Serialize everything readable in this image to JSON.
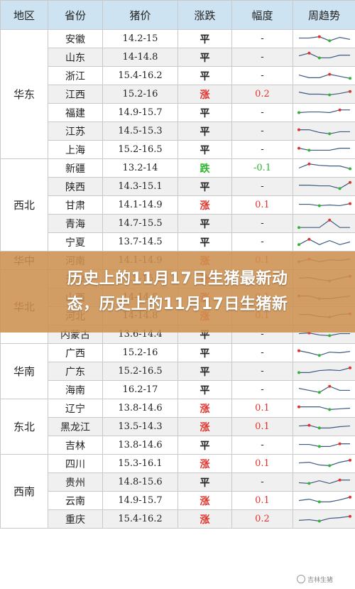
{
  "headers": {
    "region": "地区",
    "province": "省份",
    "price": "猪价",
    "change": "涨跌",
    "pct": "幅度",
    "trend": "周趋势"
  },
  "groups": [
    {
      "region": "华东",
      "rows": [
        {
          "province": "安徽",
          "price": "14.2-15",
          "change": "平",
          "dir": "flat",
          "pct": "-",
          "trend": [
            0.55,
            0.55,
            0.65,
            0.35,
            0.6,
            0.45
          ]
        },
        {
          "province": "山东",
          "price": "14-14.8",
          "change": "平",
          "dir": "flat",
          "pct": "-",
          "trend": [
            0.6,
            0.8,
            0.45,
            0.45,
            0.65,
            0.65
          ]
        },
        {
          "province": "浙江",
          "price": "15.4-16.2",
          "change": "平",
          "dir": "flat",
          "pct": "-",
          "trend": [
            0.55,
            0.35,
            0.35,
            0.6,
            0.45,
            0.3
          ]
        },
        {
          "province": "江西",
          "price": "15.2-16",
          "change": "涨",
          "dir": "up",
          "pct": "0.2",
          "trend": [
            0.65,
            0.5,
            0.5,
            0.45,
            0.55,
            0.7
          ]
        },
        {
          "province": "福建",
          "price": "14.9-15.7",
          "change": "平",
          "dir": "flat",
          "pct": "-",
          "trend": [
            0.5,
            0.55,
            0.55,
            0.5,
            0.7,
            0.7
          ]
        },
        {
          "province": "江苏",
          "price": "14.5-15.3",
          "change": "平",
          "dir": "flat",
          "pct": "-",
          "trend": [
            0.6,
            0.6,
            0.4,
            0.3,
            0.45,
            0.45
          ]
        },
        {
          "province": "上海",
          "price": "15.2-16.5",
          "change": "平",
          "dir": "flat",
          "pct": "-",
          "trend": [
            0.6,
            0.45,
            0.45,
            0.45,
            0.6,
            0.6
          ]
        }
      ]
    },
    {
      "region": "西北",
      "rows": [
        {
          "province": "新疆",
          "price": "13.2-14",
          "change": "跌",
          "dir": "down",
          "pct": "-0.1",
          "trend": [
            0.5,
            0.8,
            0.7,
            0.65,
            0.65,
            0.45
          ]
        },
        {
          "province": "陕西",
          "price": "14.3-15.1",
          "change": "平",
          "dir": "flat",
          "pct": "-",
          "trend": [
            0.6,
            0.6,
            0.55,
            0.55,
            0.35,
            0.8
          ]
        },
        {
          "province": "甘肃",
          "price": "14.1-14.9",
          "change": "涨",
          "dir": "up",
          "pct": "0.1",
          "trend": [
            0.55,
            0.55,
            0.45,
            0.5,
            0.45,
            0.6
          ]
        },
        {
          "province": "青海",
          "price": "14.7-15.5",
          "change": "平",
          "dir": "flat",
          "pct": "-",
          "trend": [
            0.2,
            0.2,
            0.2,
            0.75,
            0.2,
            0.2
          ]
        },
        {
          "province": "宁夏",
          "price": "13.7-14.5",
          "change": "平",
          "dir": "flat",
          "pct": "-",
          "trend": [
            0.3,
            0.7,
            0.3,
            0.6,
            0.3,
            0.5
          ]
        }
      ]
    },
    {
      "region": "华中",
      "rows": [
        {
          "province": "河南",
          "price": "14.1-14.9",
          "change": "涨",
          "dir": "up",
          "pct": "0.1",
          "trend": [
            0.4,
            0.6,
            0.4,
            0.55,
            0.5,
            0.6
          ]
        }
      ]
    },
    {
      "region": "华北",
      "rows": [
        {
          "province": "天津",
          "price": "14.5-15.3",
          "change": "涨",
          "dir": "up",
          "pct": "0.2",
          "trend": [
            0.55,
            0.6,
            0.45,
            0.35,
            0.55,
            0.7
          ]
        },
        {
          "province": "山西",
          "price": "14-14.8",
          "change": "涨",
          "dir": "up",
          "pct": "0.1",
          "trend": [
            0.6,
            0.6,
            0.4,
            0.4,
            0.5,
            0.6
          ]
        },
        {
          "province": "河北",
          "price": "14-14.8",
          "change": "涨",
          "dir": "up",
          "pct": "0.1",
          "trend": [
            0.6,
            0.6,
            0.45,
            0.4,
            0.6,
            0.65
          ]
        },
        {
          "province": "内蒙古",
          "price": "13.6-14.4",
          "change": "平",
          "dir": "flat",
          "pct": "-",
          "trend": [
            0.55,
            0.6,
            0.45,
            0.4,
            0.55,
            0.55
          ]
        }
      ]
    },
    {
      "region": "华南",
      "rows": [
        {
          "province": "广西",
          "price": "15.2-16",
          "change": "平",
          "dir": "flat",
          "pct": "-",
          "trend": [
            0.65,
            0.5,
            0.3,
            0.55,
            0.5,
            0.6
          ]
        },
        {
          "province": "广东",
          "price": "15.2-16.5",
          "change": "平",
          "dir": "flat",
          "pct": "-",
          "trend": [
            0.4,
            0.4,
            0.55,
            0.6,
            0.55,
            0.75
          ]
        },
        {
          "province": "海南",
          "price": "16.2-17",
          "change": "平",
          "dir": "flat",
          "pct": "-",
          "trend": [
            0.6,
            0.45,
            0.3,
            0.75,
            0.45,
            0.45
          ]
        }
      ]
    },
    {
      "region": "东北",
      "rows": [
        {
          "province": "辽宁",
          "price": "13.8-14.6",
          "change": "涨",
          "dir": "up",
          "pct": "0.1",
          "trend": [
            0.6,
            0.6,
            0.6,
            0.4,
            0.45,
            0.5
          ]
        },
        {
          "province": "黑龙江",
          "price": "13.5-14.3",
          "change": "涨",
          "dir": "up",
          "pct": "0.1",
          "trend": [
            0.55,
            0.6,
            0.4,
            0.4,
            0.5,
            0.55
          ]
        },
        {
          "province": "吉林",
          "price": "13.8-14.6",
          "change": "平",
          "dir": "flat",
          "pct": "-",
          "trend": [
            0.55,
            0.55,
            0.4,
            0.4,
            0.6,
            0.6
          ]
        }
      ]
    },
    {
      "region": "西南",
      "rows": [
        {
          "province": "四川",
          "price": "15.3-16.1",
          "change": "涨",
          "dir": "up",
          "pct": "0.1",
          "trend": [
            0.55,
            0.6,
            0.4,
            0.35,
            0.6,
            0.75
          ]
        },
        {
          "province": "贵州",
          "price": "14.8-15.6",
          "change": "平",
          "dir": "flat",
          "pct": "-",
          "trend": [
            0.45,
            0.4,
            0.6,
            0.4,
            0.65,
            0.65
          ]
        },
        {
          "province": "云南",
          "price": "14.9-15.7",
          "change": "涨",
          "dir": "up",
          "pct": "0.1",
          "trend": [
            0.5,
            0.6,
            0.4,
            0.4,
            0.55,
            0.75
          ]
        },
        {
          "province": "重庆",
          "price": "15.4-16.2",
          "change": "涨",
          "dir": "up",
          "pct": "0.2",
          "trend": [
            0.4,
            0.45,
            0.35,
            0.55,
            0.6,
            0.7
          ]
        }
      ]
    }
  ],
  "banner": {
    "line1": "历史上的11月17日生猪最新动",
    "line2": "态，历史上的11月17日生猪新"
  },
  "watermark": "吉林生猪",
  "colors": {
    "header_bg": "#cde3f1",
    "up": "#e4322b",
    "down": "#2fb52f",
    "banner": "#cd9150"
  }
}
